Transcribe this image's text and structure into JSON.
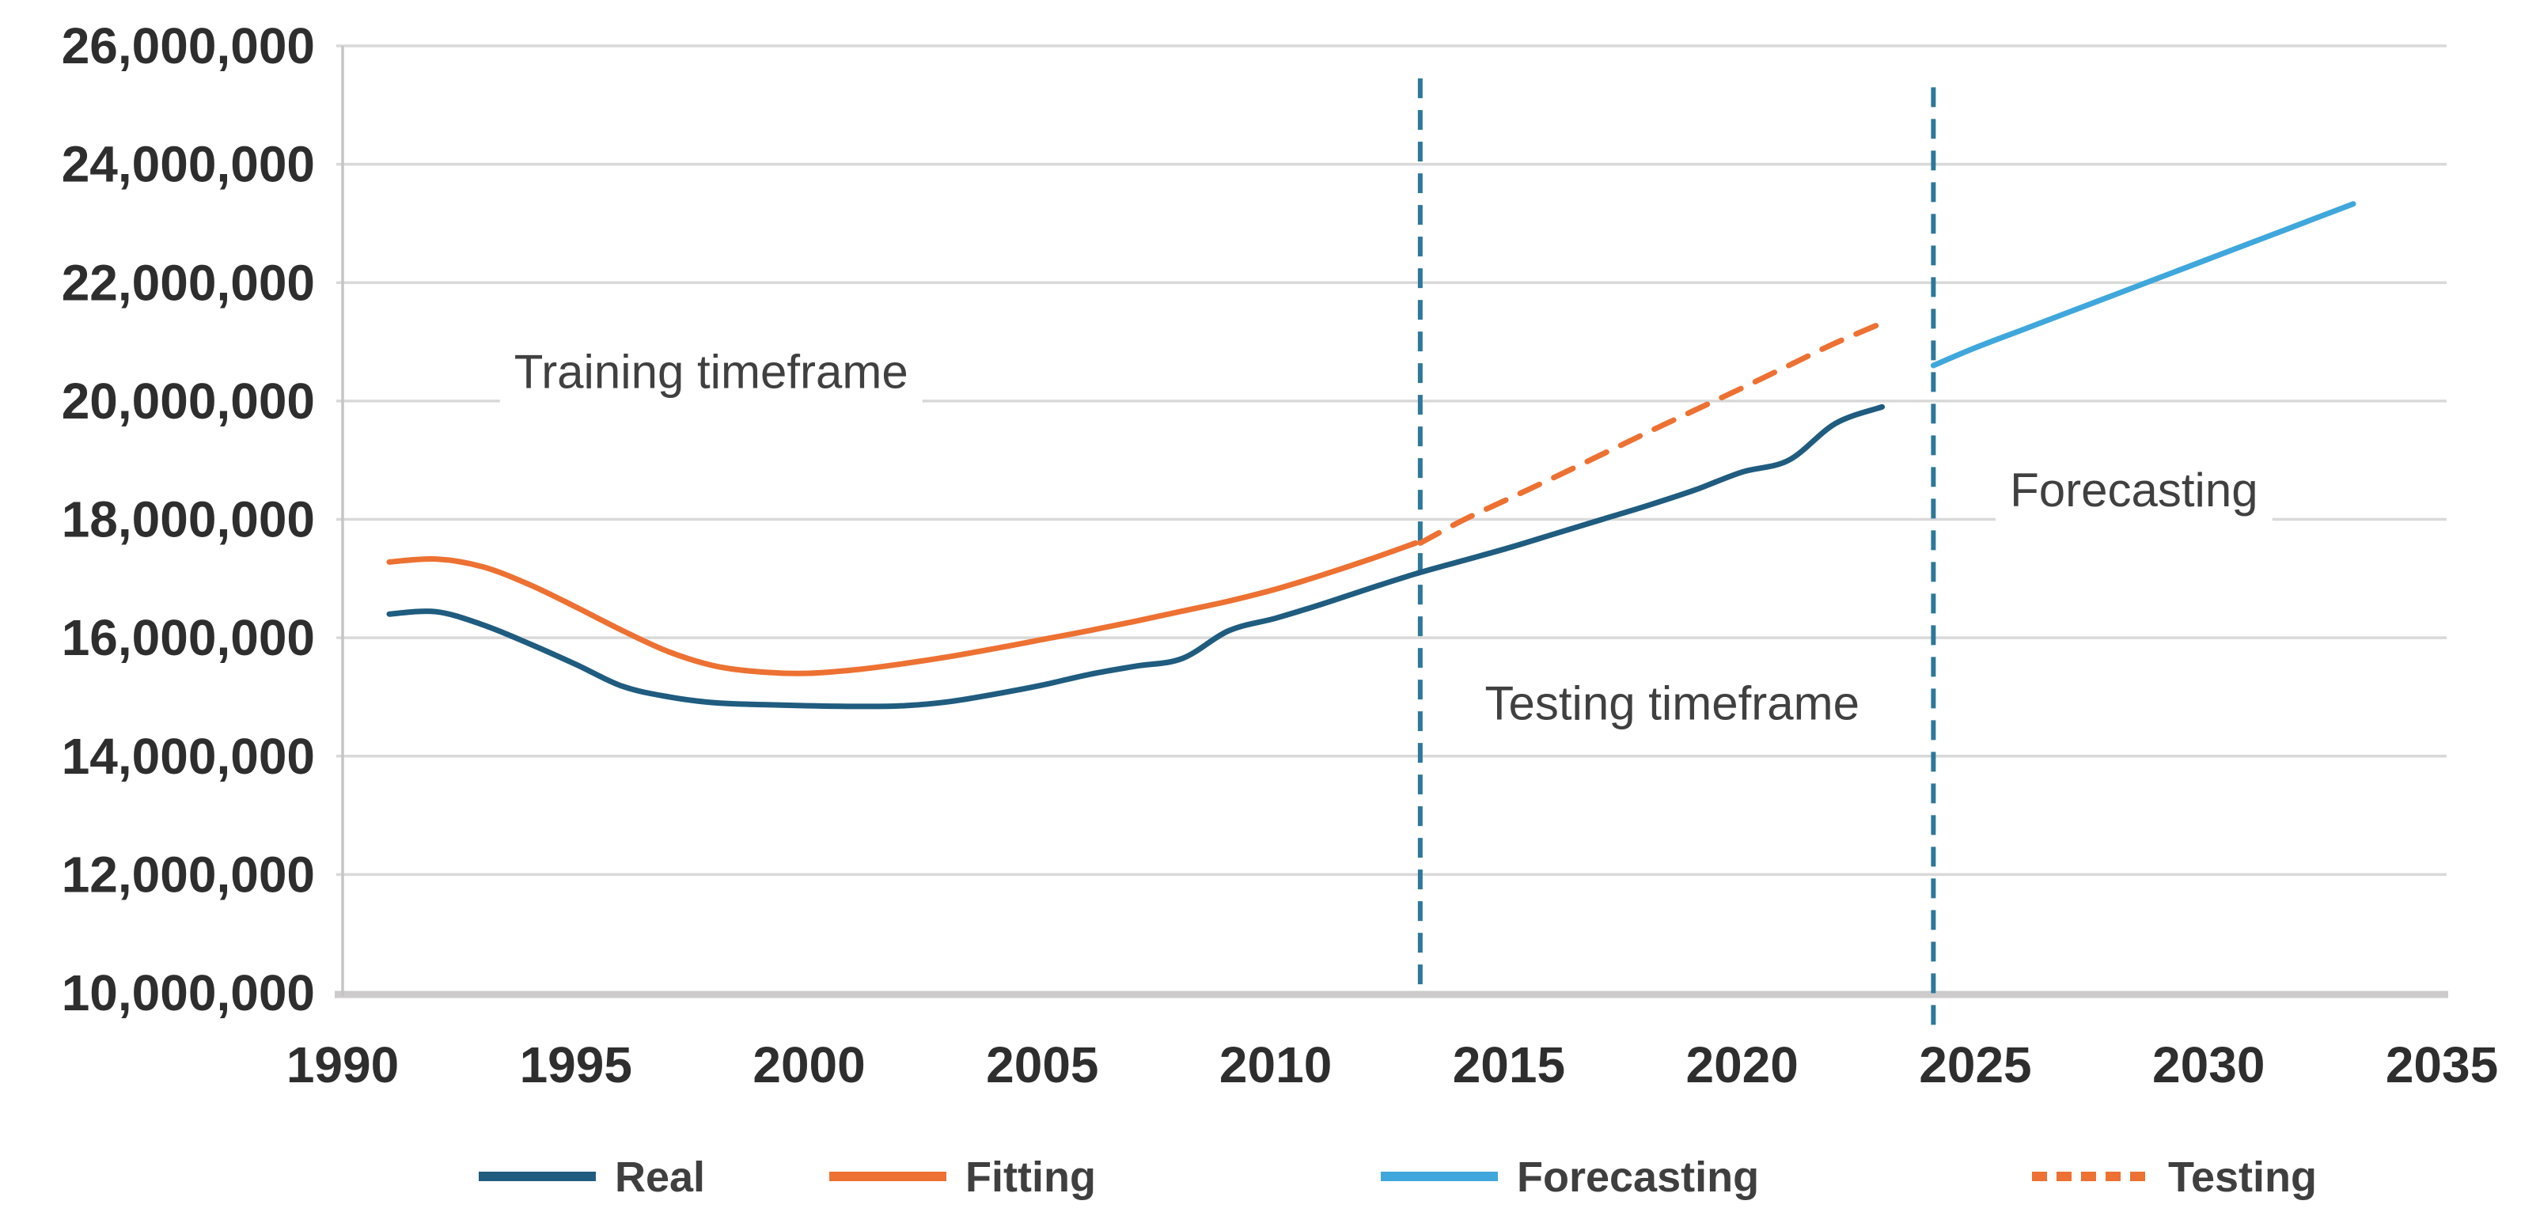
{
  "chart_data": {
    "type": "line",
    "title": "",
    "xlabel": "",
    "ylabel": "",
    "xlim": [
      1990,
      2035
    ],
    "ylim": [
      10000000,
      26000000
    ],
    "grid": "horizontal",
    "legend_position": "bottom",
    "x_ticks": [
      1990,
      1995,
      2000,
      2005,
      2010,
      2015,
      2020,
      2025,
      2030,
      2035
    ],
    "y_ticks": [
      10000000,
      12000000,
      14000000,
      16000000,
      18000000,
      20000000,
      22000000,
      24000000,
      26000000
    ],
    "y_tick_labels": [
      "10,000,000",
      "12,000,000",
      "14,000,000",
      "16,000,000",
      "18,000,000",
      "20,000,000",
      "22,000,000",
      "24,000,000",
      "26,000,000"
    ],
    "series": [
      {
        "name": "Real",
        "color": "#1F5C7F",
        "style": "solid",
        "points": [
          [
            1991,
            16400000
          ],
          [
            1992,
            16440000
          ],
          [
            1993,
            16220000
          ],
          [
            1994,
            15900000
          ],
          [
            1995,
            15550000
          ],
          [
            1996,
            15180000
          ],
          [
            1997,
            15000000
          ],
          [
            1998,
            14900000
          ],
          [
            1999,
            14870000
          ],
          [
            2000,
            14850000
          ],
          [
            2001,
            14840000
          ],
          [
            2002,
            14850000
          ],
          [
            2003,
            14920000
          ],
          [
            2004,
            15050000
          ],
          [
            2005,
            15200000
          ],
          [
            2006,
            15380000
          ],
          [
            2007,
            15520000
          ],
          [
            2008,
            15650000
          ],
          [
            2009,
            16120000
          ],
          [
            2010,
            16330000
          ],
          [
            2011,
            16570000
          ],
          [
            2012,
            16830000
          ],
          [
            2013,
            17080000
          ],
          [
            2014,
            17300000
          ],
          [
            2015,
            17520000
          ],
          [
            2016,
            17760000
          ],
          [
            2017,
            18000000
          ],
          [
            2018,
            18240000
          ],
          [
            2019,
            18500000
          ],
          [
            2020,
            18800000
          ],
          [
            2021,
            19000000
          ],
          [
            2022,
            19620000
          ],
          [
            2023,
            19900000
          ]
        ]
      },
      {
        "name": "Fitting",
        "color": "#ED7132",
        "style": "solid",
        "points": [
          [
            1991,
            17280000
          ],
          [
            1992,
            17330000
          ],
          [
            1993,
            17200000
          ],
          [
            1994,
            16900000
          ],
          [
            1995,
            16520000
          ],
          [
            1996,
            16120000
          ],
          [
            1997,
            15760000
          ],
          [
            1998,
            15520000
          ],
          [
            1999,
            15420000
          ],
          [
            2000,
            15400000
          ],
          [
            2001,
            15460000
          ],
          [
            2002,
            15560000
          ],
          [
            2003,
            15680000
          ],
          [
            2004,
            15820000
          ],
          [
            2005,
            15970000
          ],
          [
            2006,
            16120000
          ],
          [
            2007,
            16280000
          ],
          [
            2008,
            16450000
          ],
          [
            2009,
            16620000
          ],
          [
            2010,
            16820000
          ],
          [
            2011,
            17060000
          ],
          [
            2012,
            17320000
          ],
          [
            2013,
            17600000
          ]
        ]
      },
      {
        "name": "Forecasting",
        "color": "#3FA7DC",
        "style": "solid",
        "points": [
          [
            2024.1,
            20600000
          ],
          [
            2025,
            20900000
          ],
          [
            2026,
            21200000
          ],
          [
            2027,
            21500000
          ],
          [
            2028,
            21800000
          ],
          [
            2029,
            22100000
          ],
          [
            2030,
            22400000
          ],
          [
            2031,
            22700000
          ],
          [
            2032,
            23000000
          ],
          [
            2033.1,
            23330000
          ]
        ]
      },
      {
        "name": "Testing",
        "color": "#ED7132",
        "style": "dashed",
        "points": [
          [
            2013.1,
            17600000
          ],
          [
            2014,
            17980000
          ],
          [
            2015,
            18350000
          ],
          [
            2016,
            18720000
          ],
          [
            2017,
            19100000
          ],
          [
            2018,
            19480000
          ],
          [
            2019,
            19850000
          ],
          [
            2020,
            20220000
          ],
          [
            2021,
            20600000
          ],
          [
            2022,
            20980000
          ],
          [
            2023.1,
            21350000
          ]
        ]
      }
    ],
    "vertical_lines": [
      {
        "x": 2013.1,
        "y_from": 10000000,
        "y_to": 25450000,
        "color": "#2E7899",
        "style": "dashed"
      },
      {
        "x": 2024.1,
        "y_from": 9500000,
        "y_to": 25300000,
        "color": "#2E7899",
        "style": "dashed"
      }
    ],
    "annotations": [
      {
        "text": "Training timeframe",
        "x": 1997.9,
        "y": 20500000
      },
      {
        "text": "Testing timeframe",
        "x": 2018.5,
        "y": 14900000
      },
      {
        "text": "Forecasting",
        "x": 2028.4,
        "y": 18500000
      }
    ],
    "legend": [
      "Real",
      "Fitting",
      "Forecasting",
      "Testing"
    ]
  },
  "colors": {
    "gridline": "#D9D9D9",
    "axis_line": "#CDCBCB",
    "plot_border": "#C5C5C5",
    "tick_text": "#2E2E2E",
    "annotation_text": "#404040",
    "legend_text": "#3F3F3F",
    "background": "#FFFFFF"
  }
}
